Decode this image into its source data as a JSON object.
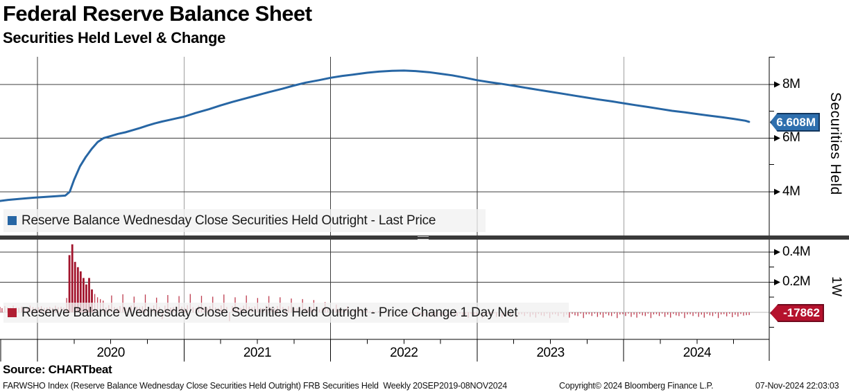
{
  "header": {
    "title": "Federal Reserve Balance Sheet",
    "subtitle": "Securities Held Level & Change"
  },
  "legends": {
    "top": "Reserve Balance Wednesday Close Securities Held Outright - Last Price",
    "bottom": "Reserve Balance Wednesday Close Securities Held Outright - Price Change 1 Day Net"
  },
  "badges": {
    "level": "6.608M",
    "change": "-17862"
  },
  "axes": {
    "right_top": {
      "title": "Securities Held",
      "labels": [
        "8M",
        "6M",
        "4M"
      ]
    },
    "right_bottom": {
      "title": "1W",
      "labels": [
        "0.4M",
        "0.2M"
      ]
    },
    "x": {
      "years": [
        "2020",
        "2021",
        "2022",
        "2023",
        "2024"
      ]
    }
  },
  "footer": {
    "source": "Source: CHARTbeat",
    "meta_left": "FARWSHO Index (Reserve Balance Wednesday Close Securities Held Outright) FRB Securities Held  Weekly 20SEP2019-08NOV2024",
    "copyright": "Copyright© 2024 Bloomberg Finance L.P.",
    "timestamp": "07-Nov-2024 22:03:03"
  },
  "chart_data": [
    {
      "type": "line",
      "panel": "top",
      "name": "Reserve Balance Wednesday Close Securities Held Outright - Last Price",
      "color": "#2766a4",
      "ylabel": "Securities Held",
      "yticks": [
        "8M",
        "6M",
        "4M"
      ],
      "ylim_millions_of_usd_millions": [
        3.2,
        9.0
      ],
      "x_range": [
        "20SEP2019",
        "08NOV2024"
      ],
      "last_value": 6.608,
      "x": [
        2019.72,
        2019.8,
        2019.88,
        2019.97,
        2020.05,
        2020.13,
        2020.19,
        2020.22,
        2020.25,
        2020.29,
        2020.33,
        2020.37,
        2020.41,
        2020.45,
        2020.5,
        2020.55,
        2020.6,
        2020.65,
        2020.7,
        2020.75,
        2020.8,
        2020.85,
        2020.9,
        2020.95,
        2021.0,
        2021.08,
        2021.17,
        2021.25,
        2021.33,
        2021.42,
        2021.5,
        2021.58,
        2021.67,
        2021.75,
        2021.83,
        2021.92,
        2022.0,
        2022.08,
        2022.17,
        2022.25,
        2022.33,
        2022.42,
        2022.5,
        2022.58,
        2022.67,
        2022.75,
        2022.83,
        2022.92,
        2023.0,
        2023.08,
        2023.17,
        2023.25,
        2023.33,
        2023.42,
        2023.5,
        2023.58,
        2023.67,
        2023.75,
        2023.83,
        2023.92,
        2024.0,
        2024.08,
        2024.17,
        2024.25,
        2024.33,
        2024.42,
        2024.5,
        2024.58,
        2024.67,
        2024.75,
        2024.83,
        2024.855
      ],
      "y": [
        3.66,
        3.7,
        3.74,
        3.78,
        3.81,
        3.84,
        3.86,
        4.0,
        4.45,
        4.95,
        5.3,
        5.6,
        5.85,
        6.0,
        6.08,
        6.16,
        6.22,
        6.3,
        6.38,
        6.47,
        6.55,
        6.62,
        6.68,
        6.74,
        6.8,
        6.94,
        7.08,
        7.22,
        7.35,
        7.48,
        7.6,
        7.72,
        7.84,
        7.96,
        8.07,
        8.16,
        8.25,
        8.32,
        8.38,
        8.44,
        8.48,
        8.51,
        8.52,
        8.5,
        8.46,
        8.4,
        8.34,
        8.25,
        8.16,
        8.09,
        8.02,
        7.95,
        7.88,
        7.8,
        7.73,
        7.66,
        7.58,
        7.51,
        7.44,
        7.37,
        7.3,
        7.23,
        7.16,
        7.09,
        7.02,
        6.96,
        6.9,
        6.84,
        6.78,
        6.72,
        6.65,
        6.608
      ]
    },
    {
      "type": "bar",
      "panel": "bottom",
      "name": "Reserve Balance Wednesday Close Securities Held Outright - Price Change 1 Day Net",
      "color": "#b01e32",
      "ylabel": "1W",
      "yticks": [
        "0.4M",
        "0.2M"
      ],
      "frequency": "weekly",
      "start_year": 2019.72,
      "last_value": -17862,
      "values_millions": [
        30000,
        36000,
        28000,
        42000,
        32000,
        30000,
        45000,
        34000,
        30000,
        38000,
        32000,
        28000,
        44000,
        36000,
        30000,
        34000,
        40000,
        30000,
        32000,
        36000,
        30000,
        44000,
        34000,
        38000,
        32000,
        95000,
        380000,
        452000,
        335000,
        300000,
        272000,
        228000,
        185000,
        228000,
        152000,
        122000,
        100000,
        88000,
        78000,
        32000,
        48000,
        112000,
        36000,
        30000,
        42000,
        120000,
        34000,
        28000,
        45000,
        105000,
        38000,
        34000,
        40000,
        118000,
        30000,
        30000,
        46000,
        98000,
        36000,
        -45000,
        44000,
        115000,
        32000,
        35000,
        42000,
        108000,
        38000,
        30000,
        48000,
        122000,
        34000,
        28000,
        44000,
        110000,
        36000,
        30000,
        40000,
        104000,
        32000,
        28000,
        46000,
        118000,
        36000,
        -58000,
        42000,
        100000,
        34000,
        30000,
        44000,
        112000,
        38000,
        32000,
        40000,
        95000,
        30000,
        28000,
        46000,
        108000,
        34000,
        30000,
        42000,
        100000,
        36000,
        26000,
        40000,
        92000,
        32000,
        28000,
        38000,
        88000,
        30000,
        24000,
        36000,
        82000,
        28000,
        20000,
        30000,
        68000,
        24000,
        16000,
        26000,
        52000,
        20000,
        12000,
        22000,
        40000,
        16000,
        10000,
        18000,
        28000,
        12000,
        8000,
        14000,
        5000,
        10000,
        4000,
        8000,
        -6000,
        6000,
        2000,
        -10000,
        4000,
        -8000,
        -5000,
        3000,
        -12000,
        -6000,
        -15000,
        -4000,
        -10000,
        -18000,
        -12000,
        -24000,
        -8000,
        -30000,
        -15000,
        -35000,
        -10000,
        -20000,
        -25000,
        -8000,
        -38000,
        -14000,
        -12000,
        -24000,
        -8000,
        -30000,
        -15000,
        -35000,
        -10000,
        -20000,
        -25000,
        -8000,
        -38000,
        -14000,
        -12000,
        -24000,
        -8000,
        -30000,
        -15000,
        -35000,
        -10000,
        -20000,
        -25000,
        -8000,
        -38000,
        -14000,
        -12000,
        -24000,
        -8000,
        -30000,
        -15000,
        -35000,
        -10000,
        -20000,
        -25000,
        -8000,
        -38000,
        -14000,
        -12000,
        -24000,
        -8000,
        -30000,
        -15000,
        -35000,
        -10000,
        -20000,
        -25000,
        -8000,
        -38000,
        -14000,
        -12000,
        -24000,
        -8000,
        -30000,
        -15000,
        -35000,
        -10000,
        -20000,
        -25000,
        -8000,
        -38000,
        -14000,
        -12000,
        -24000,
        -8000,
        -30000,
        -15000,
        -35000,
        -10000,
        -20000,
        -25000,
        -8000,
        -38000,
        -14000,
        -12000,
        -24000,
        -8000,
        -30000,
        -15000,
        -35000,
        -10000,
        -20000,
        -25000,
        -8000,
        -38000,
        -14000,
        -12000,
        -24000,
        -8000,
        -30000,
        -15000,
        -35000,
        -10000,
        -20000,
        -25000,
        -8000,
        -38000,
        -14000,
        -12000,
        -26000,
        -9000,
        -32000,
        -16000,
        -28000,
        -11000,
        -22000,
        -19000,
        -17862
      ]
    }
  ]
}
